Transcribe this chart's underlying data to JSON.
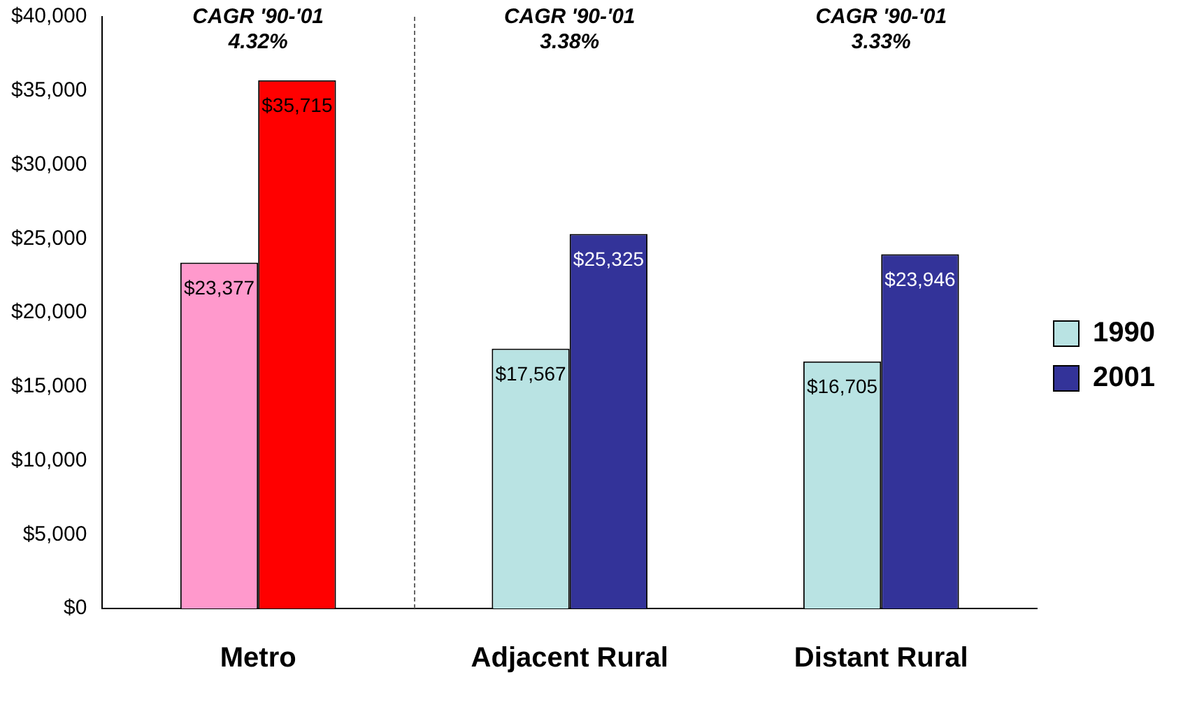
{
  "chart_data": {
    "type": "bar",
    "categories": [
      "Metro",
      "Adjacent Rural",
      "Distant Rural"
    ],
    "series": [
      {
        "name": "1990",
        "color": "#b9e3e3",
        "colors": [
          "#ff99cc",
          "#b9e3e3",
          "#b9e3e3"
        ],
        "values": [
          23377,
          17567,
          16705
        ],
        "value_labels": [
          "$23,377",
          "$17,567",
          "$16,705"
        ]
      },
      {
        "name": "2001",
        "color": "#333399",
        "colors": [
          "#ff0000",
          "#333399",
          "#333399"
        ],
        "values": [
          35715,
          25325,
          23946
        ],
        "value_labels": [
          "$35,715",
          "$25,325",
          "$23,946"
        ]
      }
    ],
    "ylim": [
      0,
      40000
    ],
    "yticks": [
      {
        "value": 0,
        "label": "$0"
      },
      {
        "value": 5000,
        "label": "$5,000"
      },
      {
        "value": 10000,
        "label": "$10,000"
      },
      {
        "value": 15000,
        "label": "$15,000"
      },
      {
        "value": 20000,
        "label": "$20,000"
      },
      {
        "value": 25000,
        "label": "$25,000"
      },
      {
        "value": 30000,
        "label": "$30,000"
      },
      {
        "value": 35000,
        "label": "$35,000"
      },
      {
        "value": 40000,
        "label": "$40,000"
      }
    ],
    "annotations": [
      "CAGR '90-'01\n4.32%",
      "CAGR '90-'01\n3.38%",
      "CAGR '90-'01\n3.33%"
    ],
    "grid": false,
    "legend": "right"
  }
}
